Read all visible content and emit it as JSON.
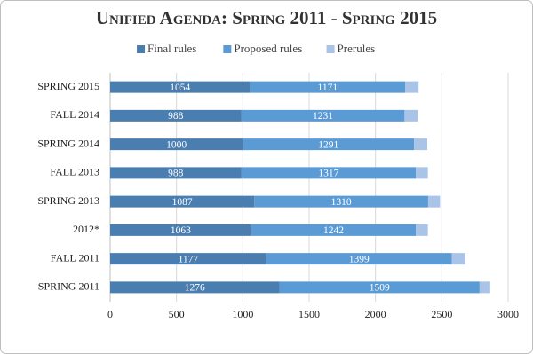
{
  "chart_data": {
    "type": "stacked-barh",
    "title": "Unified Agenda: Spring 2011 - Spring 2015",
    "categories": [
      "SPRING  2015",
      "FALL  2014",
      "SPRING  2014",
      "FALL  2013",
      "SPRING  2013",
      "2012*",
      "FALL  2011",
      "SPRING  2011"
    ],
    "series": [
      {
        "name": "Final rules",
        "color": "#4a7eb1",
        "values": [
          1054,
          988,
          1000,
          988,
          1087,
          1063,
          1177,
          1276
        ]
      },
      {
        "name": "Proposed rules",
        "color": "#5b9bd5",
        "values": [
          1171,
          1231,
          1291,
          1317,
          1310,
          1242,
          1399,
          1509
        ]
      },
      {
        "name": "Prerules",
        "color": "#a9c4e6",
        "values": [
          100,
          100,
          100,
          90,
          90,
          90,
          100,
          80
        ]
      }
    ],
    "xlim": [
      0,
      3000
    ],
    "xticks": [
      0,
      500,
      1000,
      1500,
      2000,
      2500,
      3000
    ],
    "grid": true,
    "legend": "top",
    "data_labels_series": [
      0,
      1
    ]
  }
}
